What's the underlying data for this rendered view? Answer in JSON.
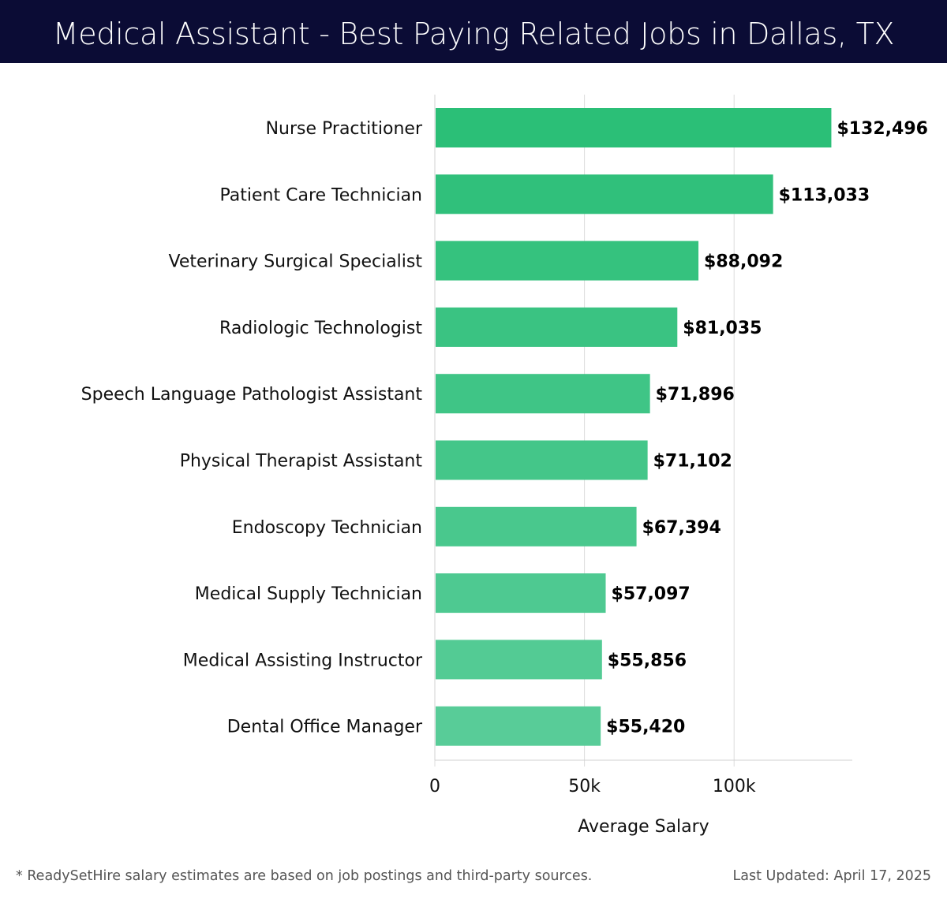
{
  "title": "Medical Assistant - Best Paying Related Jobs in Dallas, TX",
  "footer": {
    "note": "* ReadySetHire salary estimates are based on job postings and third-party sources.",
    "updated": "Last Updated: April 17, 2025"
  },
  "chart_data": {
    "type": "bar",
    "orientation": "horizontal",
    "categories": [
      "Nurse Practitioner",
      "Patient Care Technician",
      "Veterinary Surgical Specialist",
      "Radiologic Technologist",
      "Speech Language Pathologist Assistant",
      "Physical Therapist Assistant",
      "Endoscopy Technician",
      "Medical Supply Technician",
      "Medical Assisting Instructor",
      "Dental Office Manager"
    ],
    "values": [
      132496,
      113033,
      88092,
      81035,
      71896,
      71102,
      67394,
      57097,
      55856,
      55420
    ],
    "value_labels": [
      "$132,496",
      "$113,033",
      "$88,092",
      "$81,035",
      "$71,896",
      "$71,102",
      "$67,394",
      "$57,097",
      "$55,856",
      "$55,420"
    ],
    "xlabel": "Average Salary",
    "ylabel": "",
    "xlim": [
      0,
      139500
    ],
    "xticks": [
      0,
      50000,
      100000
    ],
    "xtick_labels": [
      "0",
      "50k",
      "100k"
    ],
    "grid": true,
    "colors": {
      "bar_top": "#2bbf77",
      "bar_bottom": "#58cc98",
      "header_bg": "#0b0c35"
    }
  }
}
